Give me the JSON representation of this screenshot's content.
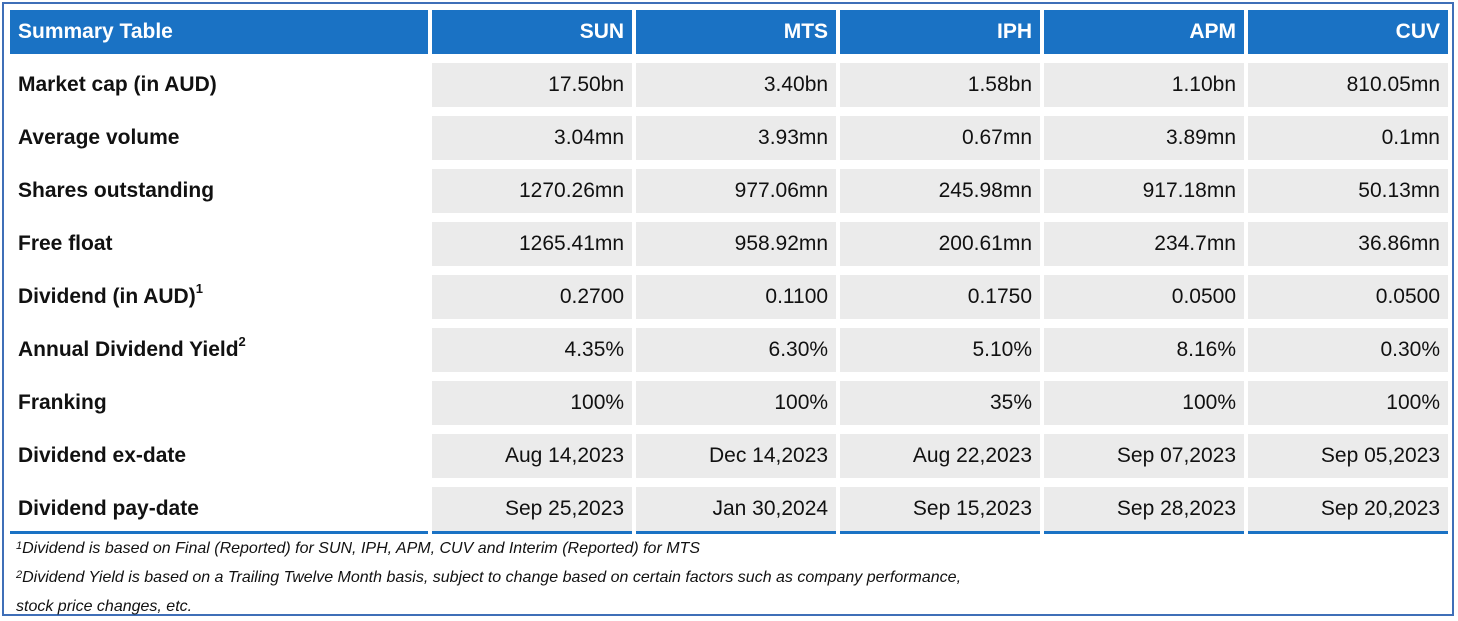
{
  "table": {
    "header": [
      "Summary Table",
      "SUN",
      "MTS",
      "IPH",
      "APM",
      "CUV"
    ],
    "rows": [
      {
        "label": "Market cap (in AUD)",
        "sup": "",
        "values": [
          "17.50bn",
          "3.40bn",
          "1.58bn",
          "1.10bn",
          "810.05mn"
        ]
      },
      {
        "label": "Average volume",
        "sup": "",
        "values": [
          "3.04mn",
          "3.93mn",
          "0.67mn",
          "3.89mn",
          "0.1mn"
        ]
      },
      {
        "label": "Shares outstanding",
        "sup": "",
        "values": [
          "1270.26mn",
          "977.06mn",
          "245.98mn",
          "917.18mn",
          "50.13mn"
        ]
      },
      {
        "label": "Free float",
        "sup": "",
        "values": [
          "1265.41mn",
          "958.92mn",
          "200.61mn",
          "234.7mn",
          "36.86mn"
        ]
      },
      {
        "label": "Dividend (in AUD)",
        "sup": "1",
        "values": [
          "0.2700",
          "0.1100",
          "0.1750",
          "0.0500",
          "0.0500"
        ]
      },
      {
        "label": "Annual Dividend Yield",
        "sup": "2",
        "values": [
          "4.35%",
          "6.30%",
          "5.10%",
          "8.16%",
          "0.30%"
        ]
      },
      {
        "label": "Franking",
        "sup": "",
        "values": [
          "100%",
          "100%",
          "35%",
          "100%",
          "100%"
        ]
      },
      {
        "label": "Dividend ex-date",
        "sup": "",
        "values": [
          "Aug 14,2023",
          "Dec 14,2023",
          "Aug 22,2023",
          "Sep 07,2023",
          "Sep 05,2023"
        ]
      },
      {
        "label": "Dividend pay-date",
        "sup": "",
        "values": [
          "Sep 25,2023",
          "Jan 30,2024",
          "Sep 15,2023",
          "Sep 28,2023",
          "Sep 20,2023"
        ]
      }
    ]
  },
  "footnotes": [
    {
      "sup": "1",
      "text": "Dividend is based on Final (Reported) for SUN, IPH, APM, CUV and Interim (Reported) for MTS"
    },
    {
      "sup": "2",
      "text": "Dividend Yield is based on a Trailing Twelve Month basis, subject to change based on certain factors such as company performance,"
    },
    {
      "sup": "",
      "text": "stock price changes, etc."
    }
  ],
  "colors": {
    "header_bg": "#1a72c4",
    "cell_bg": "#ebebeb",
    "border": "#3f6fb8"
  }
}
